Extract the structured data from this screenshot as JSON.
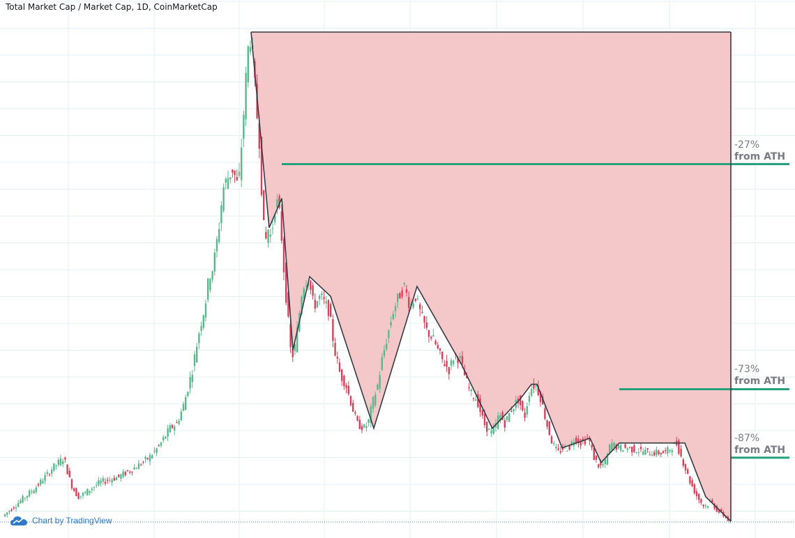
{
  "title": "Total Market Cap / Market Cap, 1D, CoinMarketCap",
  "watermark": {
    "label": "Chart by TradingView",
    "icon": "tradingview-cloud-icon"
  },
  "colors": {
    "up": "#5ab88c",
    "down": "#d9405a",
    "zone_fill": "#f4c7c9",
    "guide_line": "#26a17b",
    "trend_line": "#363a45",
    "grid": "#e4f1f3",
    "annotation_text": "#787b86"
  },
  "annotations": [
    {
      "pct": "-27%",
      "suffix": "from ATH",
      "value_pct": -27
    },
    {
      "pct": "-73%",
      "suffix": "from ATH",
      "value_pct": -73
    },
    {
      "pct": "-87%",
      "suffix": "from ATH",
      "value_pct": -87
    }
  ],
  "chart_data": {
    "type": "candlestick",
    "series_name": "Total Market Cap",
    "interval": "1D",
    "axis_labels_visible": false,
    "grid": true,
    "y_unit": "fraction of all-time high",
    "ath": 1.0,
    "levels": [
      0.73,
      0.27,
      0.13
    ],
    "x": [
      0,
      48,
      60,
      64,
      72,
      80,
      88,
      95,
      100,
      108,
      115,
      125,
      140,
      165,
      190,
      210,
      225,
      240,
      250,
      260,
      272,
      282,
      290,
      296,
      302,
      310,
      316,
      322,
      330,
      338,
      344,
      350,
      354,
      358,
      364,
      368,
      372,
      376,
      380,
      385,
      392,
      398,
      404,
      410,
      414,
      420,
      430,
      438,
      446,
      456,
      468,
      476,
      484,
      492,
      500,
      508,
      518,
      524,
      530,
      538,
      544,
      552,
      560,
      568,
      576,
      584,
      592,
      600,
      608,
      618,
      630,
      640,
      648,
      656,
      664,
      672,
      680,
      690,
      700,
      706,
      712,
      720,
      730,
      740,
      748,
      756,
      764,
      772,
      780,
      788,
      796,
      804,
      812,
      820,
      830,
      840,
      848,
      856,
      864,
      872,
      882,
      896,
      910,
      930,
      950,
      966,
      976,
      986,
      996,
      1006,
      1016,
      1026,
      1036,
      1042
    ],
    "values": [
      0.01,
      0.07,
      0.09,
      0.095,
      0.11,
      0.12,
      0.13,
      0.09,
      0.07,
      0.05,
      0.055,
      0.065,
      0.08,
      0.09,
      0.11,
      0.13,
      0.155,
      0.19,
      0.2,
      0.24,
      0.31,
      0.39,
      0.44,
      0.5,
      0.52,
      0.6,
      0.68,
      0.7,
      0.72,
      0.68,
      0.8,
      0.93,
      1.0,
      0.96,
      0.84,
      0.78,
      0.66,
      0.56,
      0.6,
      0.58,
      0.66,
      0.62,
      0.5,
      0.4,
      0.33,
      0.36,
      0.48,
      0.5,
      0.44,
      0.46,
      0.43,
      0.35,
      0.3,
      0.28,
      0.24,
      0.2,
      0.19,
      0.2,
      0.24,
      0.28,
      0.33,
      0.38,
      0.43,
      0.46,
      0.48,
      0.44,
      0.46,
      0.42,
      0.39,
      0.37,
      0.33,
      0.31,
      0.34,
      0.33,
      0.29,
      0.26,
      0.25,
      0.2,
      0.18,
      0.19,
      0.22,
      0.2,
      0.23,
      0.25,
      0.21,
      0.27,
      0.28,
      0.25,
      0.2,
      0.16,
      0.14,
      0.15,
      0.15,
      0.17,
      0.16,
      0.17,
      0.13,
      0.11,
      0.12,
      0.16,
      0.15,
      0.15,
      0.145,
      0.14,
      0.14,
      0.16,
      0.12,
      0.08,
      0.05,
      0.03,
      0.04,
      0.02,
      0.01,
      0.0
    ],
    "trendline": [
      [
        354,
        1.0
      ],
      [
        380,
        0.6
      ],
      [
        398,
        0.66
      ],
      [
        414,
        0.35
      ],
      [
        438,
        0.5
      ],
      [
        468,
        0.46
      ],
      [
        530,
        0.19
      ],
      [
        592,
        0.48
      ],
      [
        656,
        0.32
      ],
      [
        700,
        0.19
      ],
      [
        740,
        0.25
      ],
      [
        756,
        0.28
      ],
      [
        764,
        0.28
      ],
      [
        800,
        0.15
      ],
      [
        840,
        0.17
      ],
      [
        856,
        0.12
      ],
      [
        882,
        0.16
      ],
      [
        976,
        0.16
      ],
      [
        1006,
        0.05
      ],
      [
        1042,
        0.0
      ]
    ]
  }
}
